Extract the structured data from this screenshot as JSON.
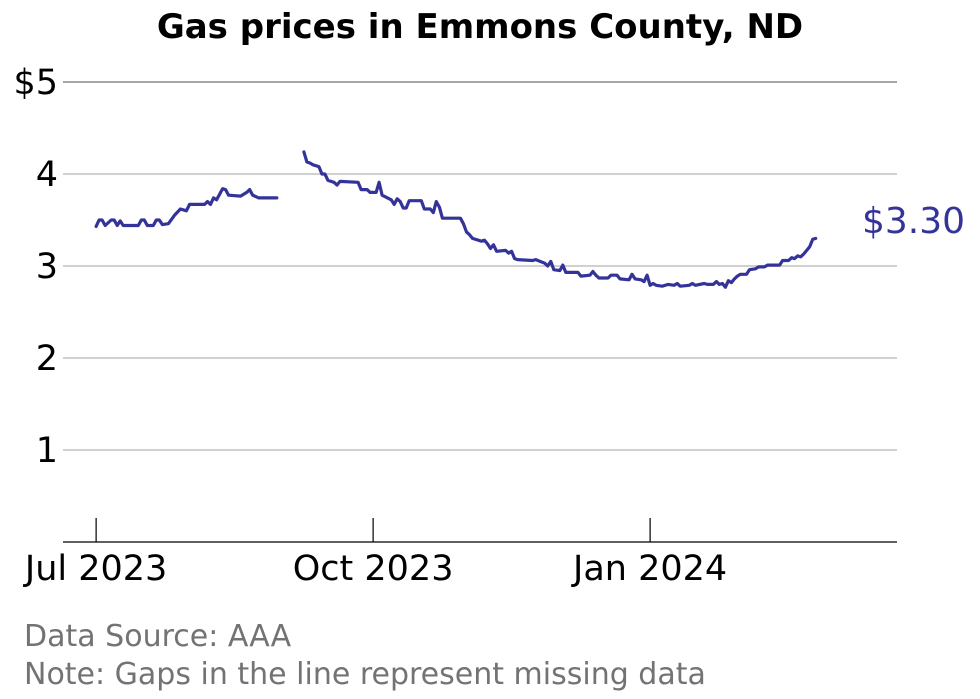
{
  "chart_data": {
    "type": "line",
    "title": "Gas prices in Emmons County, ND",
    "xlabel": "",
    "ylabel": "",
    "ylim": [
      0,
      5
    ],
    "yticks": [
      {
        "value": 1,
        "label": "1"
      },
      {
        "value": 2,
        "label": "2"
      },
      {
        "value": 3,
        "label": "3"
      },
      {
        "value": 4,
        "label": "4"
      },
      {
        "value": 5,
        "label": "$5"
      }
    ],
    "xticks": [
      {
        "date": "2023-07-01",
        "label": "Jul 2023"
      },
      {
        "date": "2023-10-01",
        "label": "Oct 2023"
      },
      {
        "date": "2024-01-01",
        "label": "Jan 2024"
      }
    ],
    "xlim": [
      "2023-06-20",
      "2024-03-23"
    ],
    "grid": true,
    "line_color": "#33339a",
    "end_label": "$3.30",
    "series": [
      {
        "segments": [
          [
            [
              "2023-07-01",
              3.43
            ],
            [
              "2023-07-02",
              3.5
            ],
            [
              "2023-07-03",
              3.5
            ],
            [
              "2023-07-04",
              3.44
            ],
            [
              "2023-07-06",
              3.5
            ],
            [
              "2023-07-07",
              3.5
            ],
            [
              "2023-07-08",
              3.44
            ],
            [
              "2023-07-09",
              3.49
            ],
            [
              "2023-07-10",
              3.44
            ],
            [
              "2023-07-15",
              3.44
            ],
            [
              "2023-07-16",
              3.5
            ],
            [
              "2023-07-17",
              3.5
            ],
            [
              "2023-07-18",
              3.44
            ],
            [
              "2023-07-20",
              3.44
            ],
            [
              "2023-07-21",
              3.5
            ],
            [
              "2023-07-22",
              3.5
            ],
            [
              "2023-07-23",
              3.45
            ],
            [
              "2023-07-25",
              3.46
            ],
            [
              "2023-07-27",
              3.55
            ],
            [
              "2023-07-29",
              3.62
            ],
            [
              "2023-07-31",
              3.6
            ],
            [
              "2023-08-01",
              3.67
            ],
            [
              "2023-08-06",
              3.67
            ],
            [
              "2023-08-07",
              3.7
            ],
            [
              "2023-08-08",
              3.67
            ],
            [
              "2023-08-09",
              3.74
            ],
            [
              "2023-08-10",
              3.72
            ],
            [
              "2023-08-11",
              3.78
            ],
            [
              "2023-08-12",
              3.84
            ],
            [
              "2023-08-13",
              3.83
            ],
            [
              "2023-08-14",
              3.77
            ],
            [
              "2023-08-18",
              3.76
            ],
            [
              "2023-08-20",
              3.8
            ],
            [
              "2023-08-21",
              3.83
            ],
            [
              "2023-08-22",
              3.77
            ],
            [
              "2023-08-24",
              3.74
            ],
            [
              "2023-08-30",
              3.74
            ]
          ],
          [
            [
              "2023-09-08",
              4.24
            ],
            [
              "2023-09-09",
              4.13
            ],
            [
              "2023-09-10",
              4.12
            ],
            [
              "2023-09-11",
              4.1
            ],
            [
              "2023-09-13",
              4.08
            ],
            [
              "2023-09-14",
              4.0
            ],
            [
              "2023-09-15",
              4.0
            ],
            [
              "2023-09-16",
              3.93
            ],
            [
              "2023-09-18",
              3.91
            ],
            [
              "2023-09-19",
              3.88
            ],
            [
              "2023-09-20",
              3.92
            ],
            [
              "2023-09-26",
              3.91
            ],
            [
              "2023-09-27",
              3.83
            ],
            [
              "2023-09-29",
              3.83
            ],
            [
              "2023-09-30",
              3.8
            ],
            [
              "2023-10-02",
              3.8
            ],
            [
              "2023-10-03",
              3.91
            ],
            [
              "2023-10-04",
              3.77
            ],
            [
              "2023-10-07",
              3.72
            ],
            [
              "2023-10-08",
              3.67
            ],
            [
              "2023-10-09",
              3.73
            ],
            [
              "2023-10-10",
              3.7
            ],
            [
              "2023-10-11",
              3.63
            ],
            [
              "2023-10-12",
              3.63
            ],
            [
              "2023-10-13",
              3.71
            ],
            [
              "2023-10-17",
              3.71
            ],
            [
              "2023-10-18",
              3.62
            ],
            [
              "2023-10-20",
              3.62
            ],
            [
              "2023-10-21",
              3.58
            ],
            [
              "2023-10-22",
              3.7
            ],
            [
              "2023-10-23",
              3.64
            ],
            [
              "2023-10-24",
              3.52
            ],
            [
              "2023-10-30",
              3.52
            ],
            [
              "2023-10-31",
              3.46
            ],
            [
              "2023-11-01",
              3.37
            ],
            [
              "2023-11-02",
              3.34
            ],
            [
              "2023-11-03",
              3.3
            ],
            [
              "2023-11-06",
              3.27
            ],
            [
              "2023-11-07",
              3.28
            ],
            [
              "2023-11-08",
              3.24
            ],
            [
              "2023-11-09",
              3.19
            ],
            [
              "2023-11-10",
              3.23
            ],
            [
              "2023-11-11",
              3.16
            ],
            [
              "2023-11-14",
              3.17
            ],
            [
              "2023-11-15",
              3.14
            ],
            [
              "2023-11-16",
              3.16
            ],
            [
              "2023-11-17",
              3.08
            ],
            [
              "2023-11-18",
              3.07
            ],
            [
              "2023-11-23",
              3.06
            ],
            [
              "2023-11-24",
              3.07
            ],
            [
              "2023-11-27",
              3.03
            ],
            [
              "2023-11-28",
              3.0
            ],
            [
              "2023-11-29",
              3.05
            ],
            [
              "2023-11-30",
              2.96
            ],
            [
              "2023-12-02",
              2.95
            ],
            [
              "2023-12-03",
              3.01
            ],
            [
              "2023-12-04",
              2.93
            ],
            [
              "2023-12-08",
              2.93
            ],
            [
              "2023-12-09",
              2.89
            ],
            [
              "2023-12-12",
              2.9
            ],
            [
              "2023-12-13",
              2.94
            ],
            [
              "2023-12-14",
              2.9
            ],
            [
              "2023-12-15",
              2.87
            ],
            [
              "2023-12-18",
              2.87
            ],
            [
              "2023-12-19",
              2.9
            ],
            [
              "2023-12-21",
              2.9
            ],
            [
              "2023-12-22",
              2.86
            ],
            [
              "2023-12-25",
              2.85
            ],
            [
              "2023-12-26",
              2.91
            ],
            [
              "2023-12-27",
              2.86
            ],
            [
              "2023-12-29",
              2.85
            ],
            [
              "2023-12-30",
              2.83
            ],
            [
              "2023-12-31",
              2.9
            ],
            [
              "2024-01-01",
              2.79
            ],
            [
              "2024-01-02",
              2.81
            ],
            [
              "2024-01-03",
              2.79
            ],
            [
              "2024-01-05",
              2.78
            ],
            [
              "2024-01-07",
              2.8
            ],
            [
              "2024-01-09",
              2.79
            ],
            [
              "2024-01-10",
              2.81
            ],
            [
              "2024-01-11",
              2.78
            ],
            [
              "2024-01-14",
              2.79
            ],
            [
              "2024-01-15",
              2.81
            ],
            [
              "2024-01-16",
              2.79
            ],
            [
              "2024-01-19",
              2.81
            ],
            [
              "2024-01-20",
              2.8
            ],
            [
              "2024-01-22",
              2.8
            ],
            [
              "2024-01-23",
              2.83
            ],
            [
              "2024-01-24",
              2.8
            ],
            [
              "2024-01-25",
              2.81
            ],
            [
              "2024-01-26",
              2.77
            ],
            [
              "2024-01-27",
              2.84
            ],
            [
              "2024-01-28",
              2.82
            ],
            [
              "2024-01-29",
              2.86
            ],
            [
              "2024-01-30",
              2.89
            ],
            [
              "2024-01-31",
              2.91
            ],
            [
              "2024-02-02",
              2.91
            ],
            [
              "2024-02-03",
              2.96
            ],
            [
              "2024-02-05",
              2.97
            ],
            [
              "2024-02-06",
              2.99
            ],
            [
              "2024-02-08",
              2.99
            ],
            [
              "2024-02-09",
              3.01
            ],
            [
              "2024-02-13",
              3.01
            ],
            [
              "2024-02-14",
              3.06
            ],
            [
              "2024-02-16",
              3.06
            ],
            [
              "2024-02-17",
              3.09
            ],
            [
              "2024-02-18",
              3.08
            ],
            [
              "2024-02-19",
              3.11
            ],
            [
              "2024-02-20",
              3.1
            ],
            [
              "2024-02-21",
              3.13
            ],
            [
              "2024-02-22",
              3.17
            ],
            [
              "2024-02-23",
              3.21
            ],
            [
              "2024-02-24",
              3.29
            ],
            [
              "2024-02-25",
              3.3
            ]
          ]
        ]
      }
    ],
    "notes": [
      "Data Source: AAA",
      "Note: Gaps in the line represent missing data"
    ]
  }
}
